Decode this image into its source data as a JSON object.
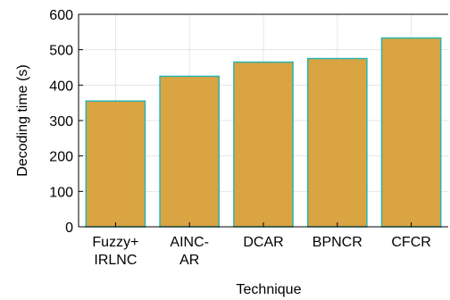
{
  "chart_data": {
    "type": "bar",
    "categories": [
      [
        "Fuzzy+",
        "IRLNC"
      ],
      [
        "AINC-",
        "AR"
      ],
      [
        "DCAR"
      ],
      [
        "BPNCR"
      ],
      [
        "CFCR"
      ]
    ],
    "values": [
      355,
      425,
      465,
      475,
      533
    ],
    "xlabel": "Technique",
    "ylabel": "Decoding time (s)",
    "ylim": [
      0,
      600
    ],
    "yticks": [
      0,
      100,
      200,
      300,
      400,
      500,
      600
    ],
    "grid": true,
    "bar_color": "#d9a441",
    "bar_edge_color": "#2ab5b0"
  }
}
